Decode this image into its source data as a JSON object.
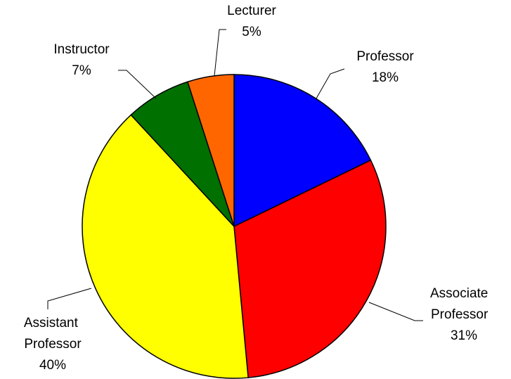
{
  "chart_data": {
    "type": "pie",
    "categories": [
      "Professor",
      "Associate Professor",
      "Assistant Professor",
      "Instructor",
      "Lecturer"
    ],
    "values": [
      18,
      31,
      40,
      7,
      5
    ],
    "value_labels": [
      "18%",
      "31%",
      "40%",
      "7%",
      "5%"
    ],
    "colors": [
      "#0000ff",
      "#ff0000",
      "#ffff00",
      "#007000",
      "#ff6600"
    ]
  }
}
